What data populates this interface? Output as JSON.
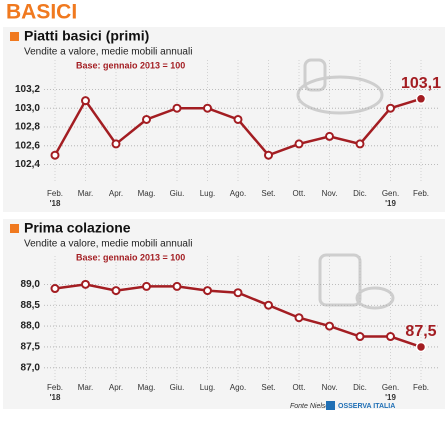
{
  "page_title": "BASICI",
  "chart_data": [
    {
      "type": "line",
      "title": "Piatti basici (primi)",
      "subtitle": "Vendite a valore, medie mobili annuali",
      "note": "Base: gennaio 2013 = 100",
      "categories": [
        "Feb.",
        "Mar.",
        "Apr.",
        "Mag.",
        "Giu.",
        "Lug.",
        "Ago.",
        "Set.",
        "Ott.",
        "Nov.",
        "Dic.",
        "Gen.",
        "Feb."
      ],
      "x_sublabels": [
        "'18",
        null,
        null,
        null,
        null,
        null,
        null,
        null,
        null,
        null,
        null,
        "'19",
        null
      ],
      "values": [
        102.5,
        103.08,
        102.62,
        102.88,
        103.0,
        103.0,
        102.88,
        102.5,
        102.62,
        102.7,
        102.62,
        103.0,
        103.1
      ],
      "value_labels": [
        null,
        null,
        null,
        null,
        null,
        null,
        null,
        null,
        null,
        null,
        null,
        null,
        "103,1"
      ],
      "color": "#a31d22",
      "ylim": [
        102.3,
        103.3
      ],
      "yticks": [
        {
          "value": 102.4,
          "label": "102,4"
        },
        {
          "value": 102.6,
          "label": "102,6"
        },
        {
          "value": 102.8,
          "label": "102,8"
        },
        {
          "value": 103.0,
          "label": "103,0"
        },
        {
          "value": 103.2,
          "label": "103,2"
        }
      ],
      "grid": true
    },
    {
      "type": "line",
      "title": "Prima colazione",
      "subtitle": "Vendite a valore, medie mobili annuali",
      "note": "Base: gennaio 2013 = 100",
      "categories": [
        "Feb.",
        "Mar.",
        "Apr.",
        "Mag.",
        "Giu.",
        "Lug.",
        "Ago.",
        "Set.",
        "Ott.",
        "Nov.",
        "Dic.",
        "Gen.",
        "Feb."
      ],
      "x_sublabels": [
        "'18",
        null,
        null,
        null,
        null,
        null,
        null,
        null,
        null,
        null,
        null,
        "'19",
        null
      ],
      "values": [
        88.9,
        89.0,
        88.85,
        88.95,
        88.95,
        88.85,
        88.8,
        88.5,
        88.2,
        88.0,
        87.75,
        87.75,
        87.5
      ],
      "value_labels": [
        null,
        null,
        null,
        null,
        null,
        null,
        null,
        null,
        null,
        null,
        null,
        null,
        "87,5"
      ],
      "color": "#a31d22",
      "ylim": [
        86.9,
        89.2
      ],
      "yticks": [
        {
          "value": 87.0,
          "label": "87,0"
        },
        {
          "value": 87.5,
          "label": "87,5"
        },
        {
          "value": 88.0,
          "label": "88,0"
        },
        {
          "value": 88.5,
          "label": "88,5"
        },
        {
          "value": 89.0,
          "label": "89,0"
        }
      ],
      "grid": true
    }
  ],
  "footer": {
    "source": "Fonte Nielsen",
    "logo": "OSSERVA ITALIA"
  }
}
